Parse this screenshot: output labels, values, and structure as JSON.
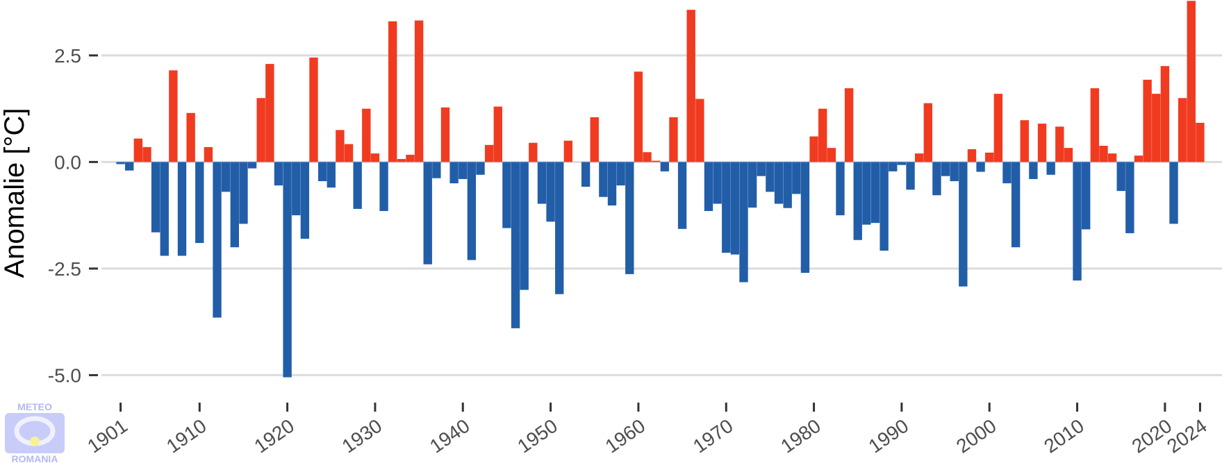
{
  "chart_data": {
    "type": "bar",
    "title": "",
    "xlabel": "",
    "ylabel": "Anomalie [°C]",
    "ylim": [
      -5.4,
      3.8
    ],
    "xlim": [
      1898.5,
      2026.5
    ],
    "yticks": [
      2.5,
      0.0,
      -2.5,
      -5.0
    ],
    "ytick_labels": [
      "2.5",
      "0.0",
      "-2.5",
      "-5.0"
    ],
    "xticks": [
      1901,
      1910,
      1920,
      1930,
      1940,
      1950,
      1960,
      1970,
      1980,
      1990,
      2000,
      2010,
      2020,
      2024
    ],
    "xtick_labels": [
      "1901",
      "1910",
      "1920",
      "1930",
      "1940",
      "1950",
      "1960",
      "1970",
      "1980",
      "1990",
      "2000",
      "2010",
      "2020",
      "2024"
    ],
    "grid": true,
    "colors": {
      "positive": "#f03b20",
      "negative": "#225ea8",
      "grid": "#dcdcdc"
    },
    "x_start": 1901,
    "values": [
      -0.05,
      -0.2,
      0.55,
      0.35,
      -1.65,
      -2.2,
      2.15,
      -2.2,
      1.15,
      -1.9,
      0.35,
      -3.65,
      -0.7,
      -2.0,
      -1.45,
      -0.15,
      1.5,
      2.3,
      -0.55,
      -5.05,
      -1.25,
      -1.8,
      2.45,
      -0.45,
      -0.6,
      0.75,
      0.42,
      -1.1,
      1.25,
      0.2,
      -1.15,
      3.3,
      0.07,
      0.17,
      3.32,
      -2.4,
      -0.38,
      1.28,
      -0.5,
      -0.4,
      -2.3,
      -0.3,
      0.4,
      1.3,
      -1.55,
      -3.9,
      -3.0,
      0.45,
      -0.98,
      -1.4,
      -3.1,
      0.5,
      0.0,
      -0.58,
      1.05,
      -0.82,
      -1.02,
      -0.55,
      -2.63,
      2.12,
      0.23,
      0.03,
      -0.22,
      1.05,
      -1.57,
      3.57,
      1.48,
      -1.15,
      -0.98,
      -2.13,
      -2.17,
      -2.82,
      -1.07,
      -0.33,
      -0.7,
      -0.98,
      -1.08,
      -0.75,
      -2.6,
      0.6,
      1.25,
      0.33,
      -1.25,
      1.73,
      -1.83,
      -1.47,
      -1.43,
      -2.08,
      -0.22,
      -0.07,
      -0.65,
      0.2,
      1.38,
      -0.78,
      -0.33,
      -0.45,
      -2.92,
      0.3,
      -0.23,
      0.22,
      1.6,
      -0.5,
      -2.0,
      0.98,
      -0.4,
      0.9,
      -0.3,
      0.83,
      0.33,
      -2.78,
      -1.58,
      1.73,
      0.38,
      0.2,
      -0.68,
      -1.67,
      0.15,
      1.93,
      1.6,
      2.25,
      -1.45,
      1.5,
      3.78,
      0.92
    ]
  },
  "logo": {
    "top_text": "METEO",
    "bottom_text": "ROMANIA"
  }
}
